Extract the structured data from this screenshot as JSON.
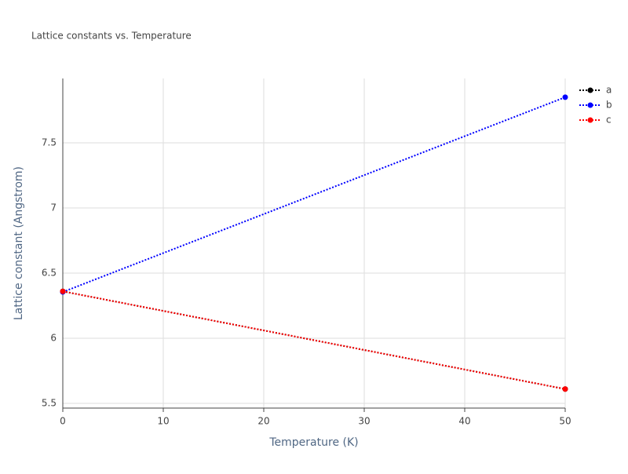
{
  "chart_data": {
    "type": "line",
    "title": "Lattice constants vs. Temperature",
    "x_label": "Temperature (K)",
    "y_label": "Lattice constant (Angstrom)",
    "x": [
      0,
      50
    ],
    "series": [
      {
        "name": "a",
        "color": "#000000",
        "values": [
          6.36,
          5.61
        ]
      },
      {
        "name": "b",
        "color": "#0000ff",
        "values": [
          6.355,
          7.85
        ]
      },
      {
        "name": "c",
        "color": "#ff0000",
        "values": [
          6.36,
          5.61
        ]
      }
    ],
    "xlim": [
      0,
      50
    ],
    "xticks": [
      0,
      10,
      20,
      30,
      40,
      50
    ],
    "ylim": [
      5.464,
      7.994
    ],
    "yticks": [
      5.5,
      6,
      6.5,
      7,
      7.5
    ],
    "grid": true,
    "legend": "top-right"
  }
}
